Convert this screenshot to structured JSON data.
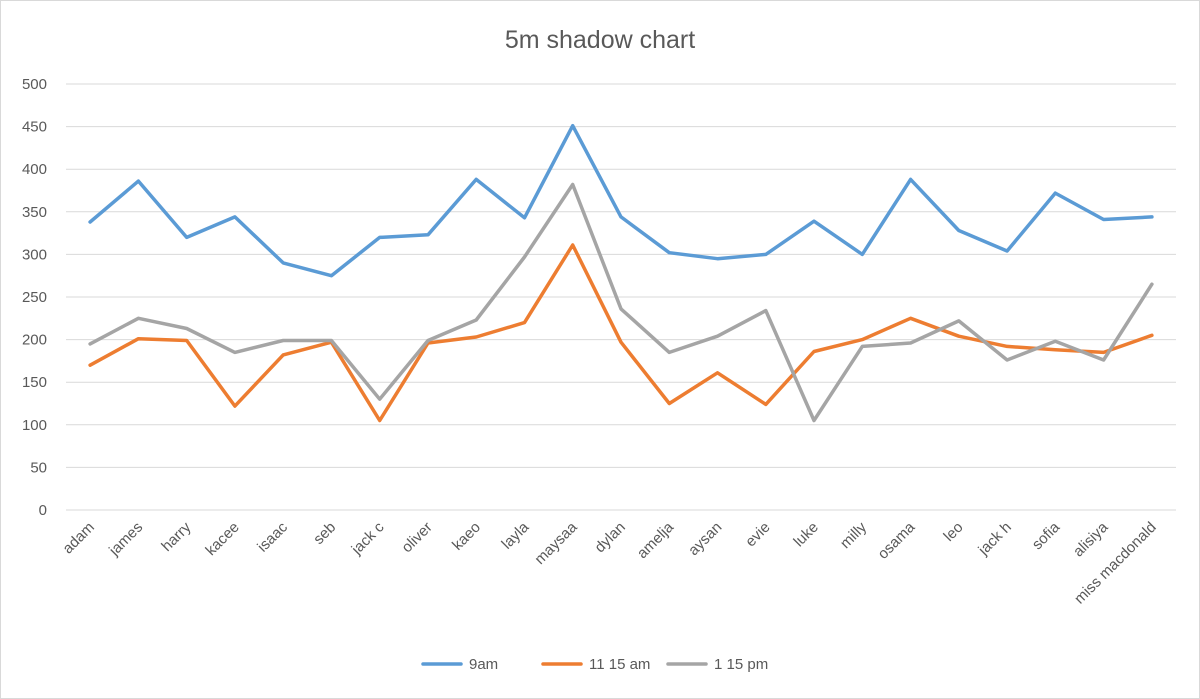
{
  "chart_data": {
    "type": "line",
    "title": "5m shadow chart",
    "xlabel": "",
    "ylabel": "",
    "ylim": [
      0,
      500
    ],
    "yticks": [
      0,
      50,
      100,
      150,
      200,
      250,
      300,
      350,
      400,
      450,
      500
    ],
    "grid": true,
    "legend_position": "bottom",
    "categories": [
      "adam",
      "james",
      "harry",
      "kacee",
      "isaac",
      "seb",
      "jack c",
      "oliver",
      "kaeo",
      "layla",
      "maysaa",
      "dylan",
      "amelja",
      "aysan",
      "evie",
      "luke",
      "milly",
      "osama",
      "leo",
      "jack h",
      "sofia",
      "alisiya",
      "miss macdonald"
    ],
    "series": [
      {
        "name": "9am",
        "color": "#5b9bd5",
        "values": [
          338,
          386,
          320,
          344,
          290,
          275,
          320,
          323,
          388,
          343,
          451,
          344,
          302,
          295,
          300,
          339,
          300,
          388,
          328,
          304,
          372,
          341,
          344
        ]
      },
      {
        "name": "11 15 am",
        "color": "#ed7d31",
        "values": [
          170,
          201,
          199,
          122,
          182,
          197,
          105,
          196,
          203,
          220,
          311,
          197,
          125,
          161,
          124,
          186,
          200,
          225,
          204,
          192,
          188,
          185,
          205
        ]
      },
      {
        "name": "1 15 pm",
        "color": "#a5a5a5",
        "values": [
          195,
          225,
          213,
          185,
          199,
          199,
          130,
          199,
          223,
          297,
          382,
          236,
          185,
          204,
          234,
          105,
          192,
          196,
          222,
          176,
          198,
          176,
          265
        ]
      }
    ]
  }
}
